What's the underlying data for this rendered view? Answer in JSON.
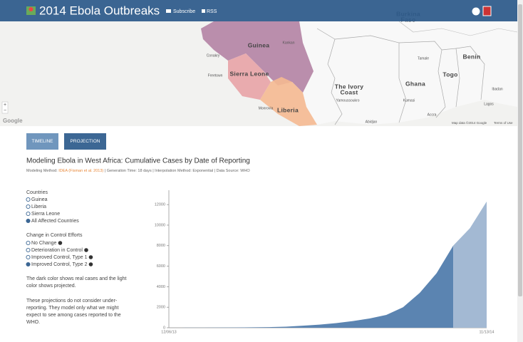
{
  "header": {
    "title": "2014 Ebola Outbreaks",
    "links": [
      "Subscribe",
      "RSS"
    ]
  },
  "map": {
    "countries": [
      "Guinea",
      "Sierra Leone",
      "Liberia",
      "The Ivory",
      "Coast",
      "Ghana",
      "Togo",
      "Benin",
      "Burkina",
      "Faso"
    ],
    "cities": [
      "Conakry",
      "Freetown",
      "Kankan",
      "Monrovia",
      "Yamoussoukro",
      "Abidjan",
      "Kumasi",
      "Tamale",
      "Accra",
      "Ibadan",
      "Lagos"
    ],
    "zoom": [
      "+",
      "−"
    ],
    "logo": "Google",
    "attribution": [
      "Map data ©2014 Google",
      "Terms of Use"
    ]
  },
  "tabs": [
    "TIMELINE",
    "PROJECTION"
  ],
  "chart_header": {
    "title": "Modeling Ebola in West Africa: Cumulative Cases by Date of Reporting",
    "method_label": "Modeling Method: ",
    "method": "IDEA (Fisman et al. 2013)",
    "details": " | Generation Time: 18 days | Interpolation Method: Exponential | Data Source: WHO"
  },
  "controls": {
    "countries": {
      "heading": "Countries",
      "options": [
        "Guinea",
        "Liberia",
        "Sierra Leone",
        "All Affected Countries"
      ],
      "selected": 3
    },
    "control": {
      "heading": "Change in Control Efforts",
      "options": [
        "No Change",
        "Deterioration in Control",
        "Improved Control, Type 1",
        "Improved Control, Type 2"
      ],
      "selected": 3
    }
  },
  "notes": [
    [
      "The dark color shows real cases and the light",
      "color shows projected."
    ],
    [
      "These projections do not consider under-",
      "reporting. They model only what we might",
      "expect to see among cases reported to the",
      "WHO."
    ]
  ],
  "chart_data": {
    "type": "area",
    "categories": [
      "12/06/13",
      null,
      null,
      null,
      null,
      null,
      null,
      null,
      null,
      null,
      null,
      null,
      null,
      null,
      null,
      null,
      null,
      null,
      null,
      "11/13/14"
    ],
    "series": [
      {
        "color": "#5b84b1",
        "values": [
          0,
          5,
          10,
          15,
          25,
          40,
          60,
          100,
          200,
          300,
          450,
          650,
          900,
          1250,
          2000,
          3400,
          5300,
          8000,
          null,
          null
        ]
      },
      {
        "color": "#a3b9d3",
        "values": [
          null,
          null,
          null,
          null,
          null,
          null,
          null,
          null,
          null,
          null,
          null,
          null,
          null,
          null,
          null,
          null,
          null,
          8000,
          9700,
          12300
        ]
      }
    ],
    "ylim": [
      0,
      13400
    ],
    "yticks": [
      0,
      2000,
      4000,
      6000,
      8000,
      10000,
      12000
    ]
  }
}
